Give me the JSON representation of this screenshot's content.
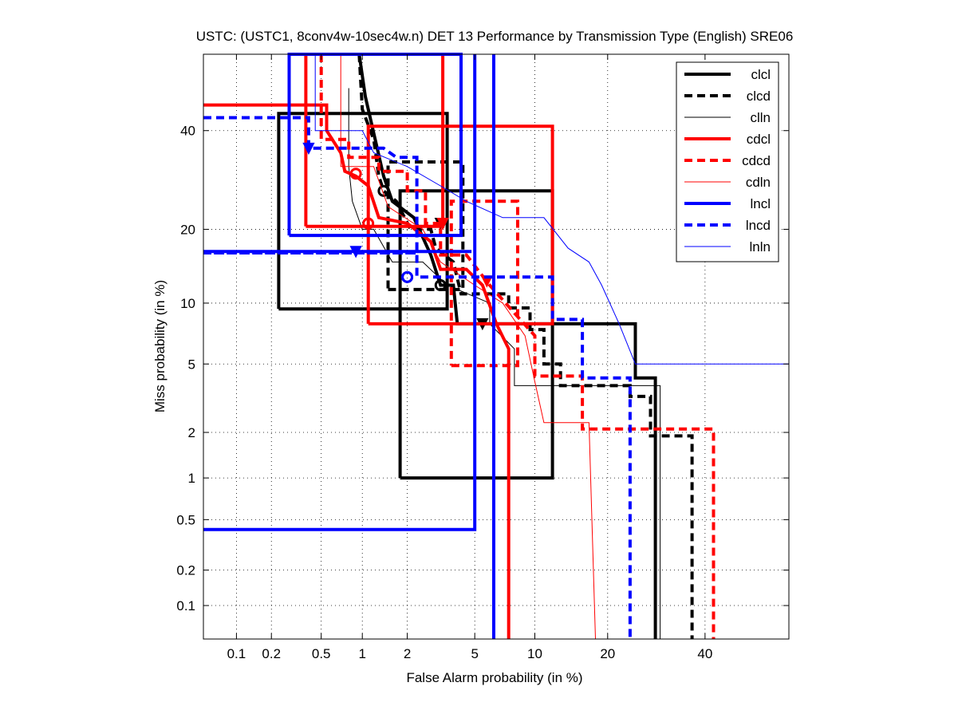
{
  "chart_data": {
    "type": "line",
    "title": "USTC: (USTC1, 8conv4w-10sec4w.n) DET 13 Performance by Transmission Type (English) SRE06",
    "xlabel": "False Alarm probability (in %)",
    "ylabel": "Miss probability (in %)",
    "x_scale": "probit",
    "y_scale": "probit",
    "xlim": [
      0.05,
      60
    ],
    "ylim": [
      0.05,
      58
    ],
    "x_ticks": [
      0.1,
      0.2,
      0.5,
      1,
      2,
      5,
      10,
      20,
      40
    ],
    "x_tick_labels": [
      "0.1",
      "0.2",
      "0.5",
      "1",
      "2",
      "5",
      "10",
      "20",
      "40"
    ],
    "y_ticks": [
      0.1,
      0.2,
      0.5,
      1,
      2,
      5,
      10,
      20,
      40
    ],
    "y_tick_labels": [
      "0.1",
      "0.2",
      "0.5",
      "1",
      "2",
      "5",
      "10",
      "20",
      "40"
    ],
    "grid": true,
    "legend_position": "top-right",
    "series": [
      {
        "name": "clcl",
        "color": "#000000",
        "style": "solid",
        "width": "thick",
        "points": [
          [
            0.95,
            62
          ],
          [
            1.05,
            48
          ],
          [
            1.4,
            30
          ],
          [
            1.6,
            25
          ],
          [
            2.2,
            22
          ],
          [
            2.8,
            16
          ],
          [
            3.2,
            12
          ],
          [
            3.8,
            12
          ],
          [
            4.0,
            8
          ],
          [
            25,
            8
          ],
          [
            25,
            4.2
          ],
          [
            29,
            4.2
          ],
          [
            29,
            0.05
          ]
        ],
        "actual_dcf": [
          5.5,
          8.0
        ],
        "min_dcf": [
          3.2,
          12.0
        ],
        "ci_box": [
          [
            0.23,
            9.4
          ],
          [
            3.5,
            44
          ]
        ],
        "ci_box2": [
          [
            1.8,
            1.0
          ],
          [
            12,
            27
          ]
        ]
      },
      {
        "name": "clcd",
        "color": "#000000",
        "style": "dashed",
        "width": "thick",
        "points": [
          [
            0.95,
            62
          ],
          [
            1.0,
            45
          ],
          [
            1.2,
            38
          ],
          [
            1.3,
            30
          ],
          [
            1.4,
            27
          ],
          [
            1.7,
            25
          ],
          [
            2.1,
            20
          ],
          [
            2.8,
            20
          ],
          [
            3.0,
            17
          ],
          [
            3.8,
            15
          ],
          [
            4.2,
            11
          ],
          [
            7.5,
            11
          ],
          [
            7.5,
            9.5
          ],
          [
            9.5,
            9.5
          ],
          [
            9.5,
            7.5
          ],
          [
            11,
            7.5
          ],
          [
            11,
            5
          ],
          [
            13,
            5
          ],
          [
            13,
            3.8
          ],
          [
            24,
            3.8
          ],
          [
            24,
            3.3
          ],
          [
            28,
            3.3
          ],
          [
            28,
            1.9
          ],
          [
            37,
            1.9
          ],
          [
            37,
            0.05
          ]
        ],
        "actual_dcf": [
          3.2,
          21.0
        ],
        "min_dcf": [
          1.4,
          27.0
        ],
        "ci_box": [
          [
            1.5,
            11.5
          ],
          [
            4.3,
            33
          ]
        ]
      },
      {
        "name": "clln",
        "color": "#000000",
        "style": "solid",
        "width": "thin",
        "points": [
          [
            0.8,
            50
          ],
          [
            0.8,
            32
          ],
          [
            0.85,
            25
          ],
          [
            1.0,
            20
          ],
          [
            1.2,
            20
          ],
          [
            1.6,
            15
          ],
          [
            2.5,
            15
          ],
          [
            3.5,
            12
          ],
          [
            6,
            10
          ],
          [
            6,
            8
          ],
          [
            8,
            6
          ],
          [
            8,
            3.8
          ],
          [
            10,
            3.8
          ],
          [
            30,
            3.8
          ],
          [
            30,
            0.05
          ]
        ]
      },
      {
        "name": "cdcl",
        "color": "#ff0000",
        "style": "solid",
        "width": "thick",
        "points": [
          [
            0.05,
            46
          ],
          [
            0.55,
            46
          ],
          [
            0.55,
            40
          ],
          [
            0.7,
            35
          ],
          [
            0.75,
            31
          ],
          [
            0.9,
            30
          ],
          [
            1.1,
            28
          ],
          [
            1.3,
            22
          ],
          [
            2.0,
            21
          ],
          [
            2.8,
            18
          ],
          [
            3.2,
            14
          ],
          [
            4.5,
            14
          ],
          [
            5.5,
            12
          ],
          [
            6.5,
            8
          ],
          [
            7.5,
            6
          ],
          [
            7.5,
            0.05
          ]
        ],
        "actual_dcf": [
          3.3,
          21.0
        ],
        "min_dcf": [
          0.9,
          30.5
        ],
        "ci_box": [
          [
            0.38,
            20.5
          ],
          [
            3.3,
            62
          ]
        ],
        "ci_box2": [
          [
            1.1,
            8.0
          ],
          [
            12,
            41
          ]
        ]
      },
      {
        "name": "cdcd",
        "color": "#ff0000",
        "style": "dashed",
        "width": "thick",
        "points": [
          [
            0.5,
            62
          ],
          [
            0.5,
            38
          ],
          [
            0.8,
            38
          ],
          [
            0.8,
            34
          ],
          [
            1.3,
            34
          ],
          [
            1.3,
            31
          ],
          [
            2.0,
            31
          ],
          [
            2.0,
            27
          ],
          [
            2.6,
            27
          ],
          [
            2.6,
            21
          ],
          [
            3.2,
            21
          ],
          [
            3.2,
            16
          ],
          [
            4.5,
            16
          ],
          [
            6,
            12
          ],
          [
            8,
            9
          ],
          [
            10,
            7
          ],
          [
            10,
            4.3
          ],
          [
            13,
            4.3
          ],
          [
            16,
            4.3
          ],
          [
            16,
            2.1
          ],
          [
            42,
            2.1
          ],
          [
            42,
            0.05
          ]
        ],
        "actual_dcf": [
          5.8,
          12.5
        ],
        "min_dcf": [
          1.1,
          21.0
        ],
        "ci_box": [
          [
            3.7,
            4.9
          ],
          [
            8.3,
            25
          ]
        ]
      },
      {
        "name": "cdln",
        "color": "#ff0000",
        "style": "solid",
        "width": "thin",
        "points": [
          [
            0.7,
            62
          ],
          [
            0.7,
            32
          ],
          [
            1.2,
            32
          ],
          [
            1.5,
            24
          ],
          [
            2.5,
            20
          ],
          [
            3.2,
            15
          ],
          [
            5,
            12
          ],
          [
            7,
            10
          ],
          [
            9,
            7
          ],
          [
            10,
            4
          ],
          [
            11,
            2.3
          ],
          [
            17,
            2.3
          ],
          [
            18,
            0.05
          ]
        ]
      },
      {
        "name": "lncl",
        "color": "#0000ff",
        "style": "solid",
        "width": "thick",
        "points": [
          [
            0.05,
            0.42
          ],
          [
            5.0,
            0.42
          ],
          [
            5.0,
            62
          ]
        ],
        "actual_dcf": [
          0.4,
          36.0
        ],
        "min_dcf": [
          2.0,
          13.0
        ],
        "ci_box": [
          [
            0.28,
            19
          ],
          [
            4.2,
            62
          ]
        ],
        "ci_box2": [
          [
            0.05,
            16.5
          ],
          [
            4.8,
            16.5
          ]
        ],
        "extra_vertical": [
          6.3
        ]
      },
      {
        "name": "lncd",
        "color": "#0000ff",
        "style": "dashed",
        "width": "thick",
        "points": [
          [
            0.05,
            43
          ],
          [
            0.4,
            43
          ],
          [
            0.4,
            36
          ],
          [
            1.4,
            36
          ],
          [
            1.7,
            34
          ],
          [
            2.3,
            34
          ],
          [
            2.3,
            13
          ],
          [
            12,
            13
          ],
          [
            12,
            8.4
          ],
          [
            16,
            8.4
          ],
          [
            16,
            4.2
          ],
          [
            24,
            4.2
          ],
          [
            24,
            0.05
          ]
        ],
        "actual_dcf": [
          0.9,
          16.5
        ],
        "min_dcf": [
          2.0,
          13.0
        ],
        "ci_box": [
          [
            0.05,
            16.3
          ],
          [
            2.3,
            16.3
          ]
        ]
      },
      {
        "name": "lnln",
        "color": "#0000ff",
        "style": "solid",
        "width": "thin",
        "points": [
          [
            0.45,
            62
          ],
          [
            0.45,
            40
          ],
          [
            1.0,
            40
          ],
          [
            1.2,
            35
          ],
          [
            2.0,
            32
          ],
          [
            3.2,
            28
          ],
          [
            4.5,
            25
          ],
          [
            7,
            22
          ],
          [
            11,
            22
          ],
          [
            14,
            17
          ],
          [
            17,
            15
          ],
          [
            19,
            12
          ],
          [
            22,
            8
          ],
          [
            25,
            5
          ],
          [
            60,
            5
          ]
        ]
      }
    ]
  },
  "legend": {
    "items": [
      "clcl",
      "clcd",
      "clln",
      "cdcl",
      "cdcd",
      "cdln",
      "lncl",
      "lncd",
      "lnln"
    ]
  }
}
